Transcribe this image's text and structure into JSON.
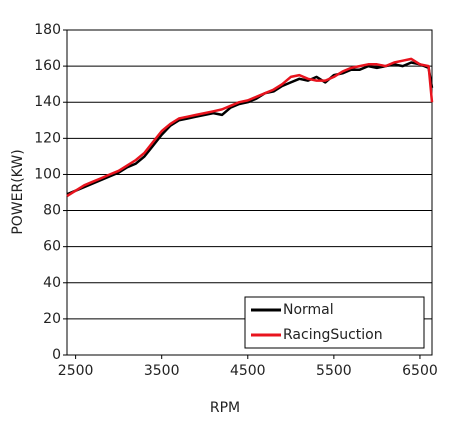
{
  "chart_data": {
    "type": "line",
    "x_label": "RPM",
    "y_label": "POWER(KW)",
    "x": [
      2400,
      2500,
      2600,
      2700,
      2800,
      2900,
      3000,
      3100,
      3200,
      3300,
      3400,
      3500,
      3600,
      3700,
      3800,
      3900,
      4000,
      4100,
      4200,
      4300,
      4400,
      4500,
      4600,
      4700,
      4800,
      4900,
      5000,
      5100,
      5200,
      5300,
      5400,
      5500,
      5600,
      5700,
      5800,
      5900,
      6000,
      6100,
      6200,
      6300,
      6400,
      6500,
      6600,
      6640
    ],
    "series": [
      {
        "name": "Normal",
        "color": "#000000",
        "values": [
          89,
          91,
          93,
          95,
          97,
          99,
          101,
          104,
          106,
          110,
          116,
          122,
          127,
          130,
          131,
          132,
          133,
          134,
          133,
          137,
          139,
          140,
          142,
          145,
          146,
          149,
          151,
          153,
          152,
          154,
          151,
          155,
          156,
          158,
          158,
          160,
          159,
          160,
          161,
          160,
          162,
          161,
          159,
          148
        ]
      },
      {
        "name": "RacingSuction",
        "color": "#e8141e",
        "values": [
          88,
          91,
          94,
          96,
          98,
          100,
          102,
          105,
          108,
          112,
          118,
          124,
          128,
          131,
          132,
          133,
          134,
          135,
          136,
          138,
          140,
          141,
          143,
          145,
          147,
          150,
          154,
          155,
          153,
          152,
          152,
          154,
          157,
          159,
          160,
          161,
          161,
          160,
          162,
          163,
          164,
          161,
          160,
          140
        ]
      }
    ],
    "xlim": [
      2400,
      6640
    ],
    "ylim": [
      0,
      180
    ],
    "xticks": [
      2500,
      3500,
      4500,
      5500,
      6500
    ],
    "yticks": [
      0,
      20,
      40,
      60,
      80,
      100,
      120,
      140,
      160,
      180
    ],
    "grid": true,
    "legend": "lower right"
  }
}
